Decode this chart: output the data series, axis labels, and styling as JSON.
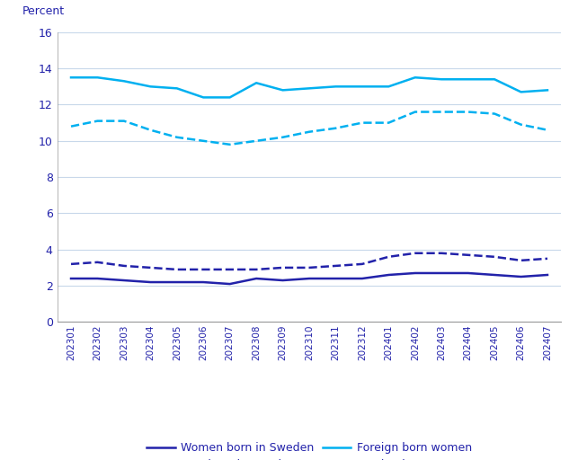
{
  "x_labels": [
    "202301",
    "202302",
    "202303",
    "202304",
    "202305",
    "202306",
    "202307",
    "202308",
    "202309",
    "202310",
    "202311",
    "202312",
    "202401",
    "202402",
    "202403",
    "202404",
    "202405",
    "202406",
    "202407"
  ],
  "women_born_sweden": [
    2.4,
    2.4,
    2.3,
    2.2,
    2.2,
    2.2,
    2.1,
    2.4,
    2.3,
    2.4,
    2.4,
    2.4,
    2.6,
    2.7,
    2.7,
    2.7,
    2.6,
    2.5,
    2.6
  ],
  "men_born_sweden": [
    3.2,
    3.3,
    3.1,
    3.0,
    2.9,
    2.9,
    2.9,
    2.9,
    3.0,
    3.0,
    3.1,
    3.2,
    3.6,
    3.8,
    3.8,
    3.7,
    3.6,
    3.4,
    3.5
  ],
  "foreign_born_women": [
    13.5,
    13.5,
    13.3,
    13.0,
    12.9,
    12.4,
    12.4,
    13.2,
    12.8,
    12.9,
    13.0,
    13.0,
    13.0,
    13.5,
    13.4,
    13.4,
    13.4,
    12.7,
    12.8
  ],
  "foreign_born_men": [
    10.8,
    11.1,
    11.1,
    10.6,
    10.2,
    10.0,
    9.8,
    10.0,
    10.2,
    10.5,
    10.7,
    11.0,
    11.0,
    11.6,
    11.6,
    11.6,
    11.5,
    10.9,
    10.6
  ],
  "color_dark_blue": "#2222aa",
  "color_cyan": "#00b0f0",
  "percent_label": "Percent",
  "ylim": [
    0,
    16
  ],
  "yticks": [
    0,
    2,
    4,
    6,
    8,
    10,
    12,
    14,
    16
  ],
  "legend": [
    "Women born in Sweden",
    "Men born in Sweden",
    "Foreign born women",
    "Foreign born men"
  ],
  "background_color": "#ffffff",
  "grid_color": "#c8d8ea"
}
